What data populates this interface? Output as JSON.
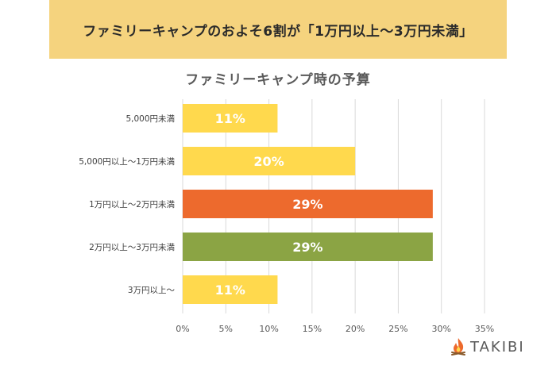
{
  "banner": {
    "text": "ファミリーキャンプのおよそ6割が「1万円以上～3万円未満」"
  },
  "logo": {
    "text": "TAKIBI",
    "icon": "campfire-icon"
  },
  "colors": {
    "yellow": "#ffd94d",
    "orange": "#ed6a2d",
    "green": "#8ba444",
    "banner": "#f5d37e",
    "grid": "#d9d9d9"
  },
  "chart_data": {
    "type": "bar",
    "orientation": "horizontal",
    "title": "ファミリーキャンプ時の予算",
    "categories": [
      "5,000円未満",
      "5,000円以上～1万円未満",
      "1万円以上～2万円未満",
      "2万円以上～3万円未満",
      "3万円以上～"
    ],
    "values": [
      11,
      20,
      29,
      29,
      11
    ],
    "data_labels": [
      "11%",
      "20%",
      "29%",
      "29%",
      "11%"
    ],
    "bar_colors": [
      "#ffd94d",
      "#ffd94d",
      "#ed6a2d",
      "#8ba444",
      "#ffd94d"
    ],
    "xlim": [
      0,
      35
    ],
    "xticks": [
      0,
      5,
      10,
      15,
      20,
      25,
      30,
      35
    ],
    "xtick_labels": [
      "0%",
      "5%",
      "10%",
      "15%",
      "20%",
      "25%",
      "30%",
      "35%"
    ],
    "grid": true,
    "xlabel": "",
    "ylabel": ""
  }
}
